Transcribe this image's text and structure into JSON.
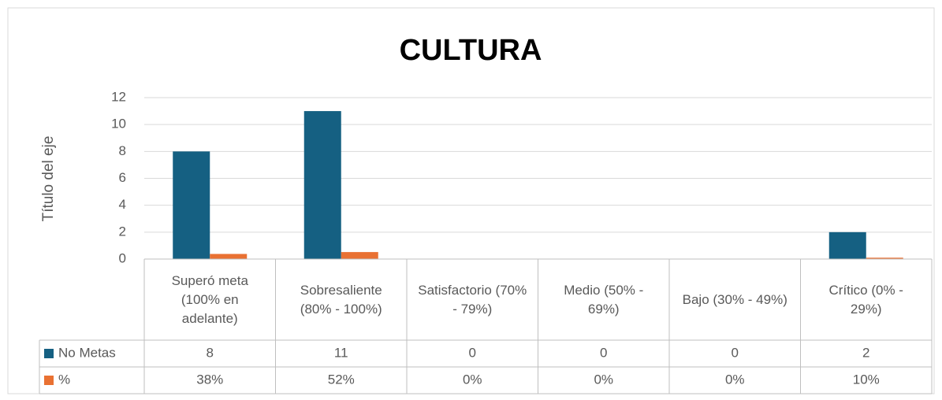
{
  "chart_data": {
    "type": "bar",
    "title": "CULTURA",
    "y_label": "Título del eje",
    "categories": [
      "Superó meta (100% en adelante)",
      "Sobresaliente (80%  - 100%)",
      "Satisfactorio (70% - 79%)",
      "Medio (50%  - 69%)",
      "Bajo (30% - 49%)",
      "Crítico (0% - 29%)"
    ],
    "series": [
      {
        "name": "No Metas",
        "color": "#156082",
        "values": [
          8,
          11,
          0,
          0,
          0,
          2
        ]
      },
      {
        "name": "%",
        "color": "#e97132",
        "values": [
          0.38,
          0.52,
          0,
          0,
          0,
          0.1
        ],
        "value_labels": [
          "38%",
          "52%",
          "0%",
          "0%",
          "0%",
          "10%"
        ]
      }
    ],
    "ylim": [
      0,
      12
    ],
    "yticks": [
      0,
      2,
      4,
      6,
      8,
      10,
      12
    ],
    "grid": true,
    "data_table": true
  }
}
